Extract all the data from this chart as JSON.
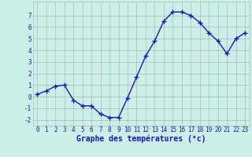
{
  "x": [
    0,
    1,
    2,
    3,
    4,
    5,
    6,
    7,
    8,
    9,
    10,
    11,
    12,
    13,
    14,
    15,
    16,
    17,
    18,
    19,
    20,
    21,
    22,
    23
  ],
  "y": [
    0.2,
    0.5,
    0.9,
    1.0,
    -0.3,
    -0.8,
    -0.8,
    -1.5,
    -1.8,
    -1.8,
    -0.1,
    1.7,
    3.5,
    4.8,
    6.5,
    7.3,
    7.3,
    7.0,
    6.4,
    5.5,
    4.8,
    3.7,
    5.0,
    5.5
  ],
  "line_color": "#1a1aaa",
  "marker": "+",
  "marker_color": "#1a1aaa",
  "marker_size": 4,
  "marker_linewidth": 1.0,
  "line_width": 1.0,
  "xlabel": "Graphe des températures (°c)",
  "xlabel_color": "#1a1aaa",
  "xlabel_fontsize": 7,
  "background_color": "#cceee8",
  "grid_color": "#aabbbb",
  "tick_color": "#1a1aaa",
  "tick_fontsize": 5.5,
  "ylim": [
    -2.5,
    8.2
  ],
  "xlim": [
    -0.5,
    23.5
  ],
  "yticks": [
    -2,
    -1,
    0,
    1,
    2,
    3,
    4,
    5,
    6,
    7
  ],
  "xticks": [
    0,
    1,
    2,
    3,
    4,
    5,
    6,
    7,
    8,
    9,
    10,
    11,
    12,
    13,
    14,
    15,
    16,
    17,
    18,
    19,
    20,
    21,
    22,
    23
  ]
}
